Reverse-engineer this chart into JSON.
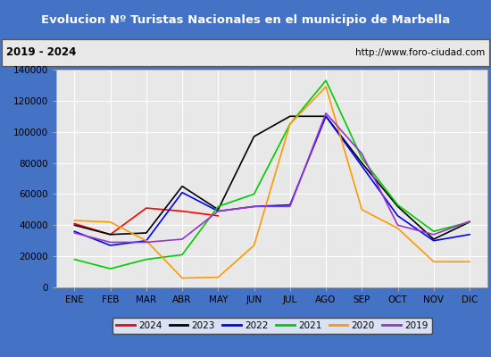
{
  "title": "Evolucion Nº Turistas Nacionales en el municipio de Marbella",
  "subtitle_left": "2019 - 2024",
  "subtitle_right": "http://www.foro-ciudad.com",
  "months": [
    "ENE",
    "FEB",
    "MAR",
    "ABR",
    "MAY",
    "JUN",
    "JUL",
    "AGO",
    "SEP",
    "OCT",
    "NOV",
    "DIC"
  ],
  "series": {
    "2024": {
      "color": "#ff0000",
      "data": [
        41000,
        34000,
        51000,
        49000,
        46000,
        null,
        null,
        null,
        null,
        null,
        null,
        null
      ]
    },
    "2023": {
      "color": "#000000",
      "data": [
        40000,
        34000,
        35000,
        65000,
        50000,
        97000,
        110000,
        110000,
        80000,
        52000,
        31000,
        42000
      ]
    },
    "2022": {
      "color": "#0000ff",
      "data": [
        36000,
        27000,
        30000,
        61000,
        49000,
        52000,
        53000,
        110000,
        78000,
        46000,
        30000,
        34000
      ]
    },
    "2021": {
      "color": "#00cc00",
      "data": [
        18000,
        12000,
        18000,
        21000,
        52000,
        60000,
        105000,
        133000,
        83000,
        53000,
        36000,
        42000
      ]
    },
    "2020": {
      "color": "#ff9900",
      "data": [
        43000,
        42000,
        30000,
        6000,
        6500,
        27000,
        105000,
        129000,
        50000,
        38000,
        16500,
        16500
      ]
    },
    "2019": {
      "color": "#9933cc",
      "data": [
        35000,
        29000,
        29000,
        31000,
        49000,
        52000,
        52000,
        112000,
        86000,
        40000,
        34000,
        42500
      ]
    }
  },
  "ylim": [
    0,
    140000
  ],
  "yticks": [
    0,
    20000,
    40000,
    60000,
    80000,
    100000,
    120000,
    140000
  ],
  "title_bg_color": "#4472c4",
  "title_text_color": "#ffffff",
  "subtitle_bg_color": "#e8e8e8",
  "plot_bg_color": "#e8e8e8",
  "grid_color": "#ffffff",
  "outer_border_color": "#4472c4",
  "legend_font_size": 7.5,
  "axis_font_size": 7.5
}
